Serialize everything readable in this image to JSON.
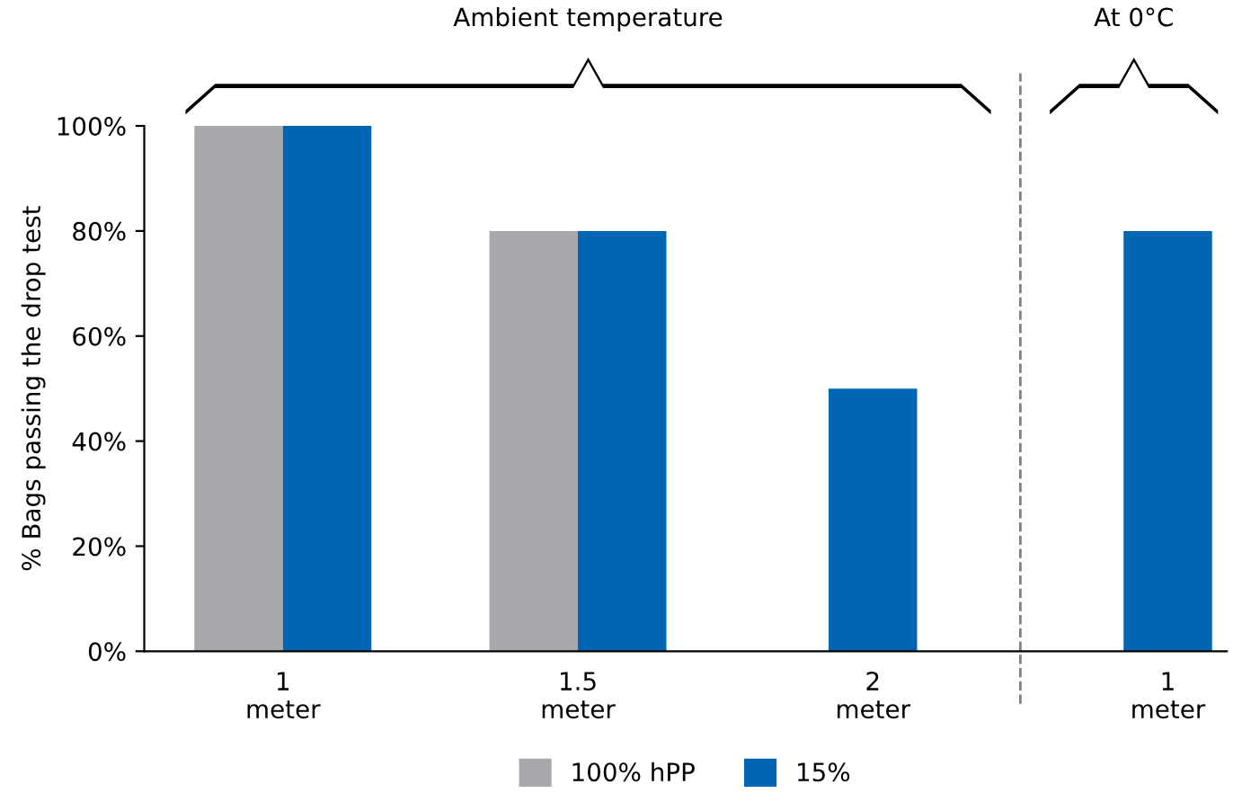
{
  "chart_data": {
    "type": "bar",
    "ylabel": "% Bags passing the drop test",
    "categories": [
      "1\nmeter",
      "1.5\nmeter",
      "2\nmeter",
      "1\nmeter"
    ],
    "series": [
      {
        "name": "100% hPP",
        "color": "#a7a9ac",
        "values": [
          100,
          80,
          null,
          null
        ]
      },
      {
        "name": "15%",
        "color": "#0066b3",
        "values": [
          100,
          80,
          50,
          80
        ]
      }
    ],
    "ylim": [
      0,
      100
    ],
    "yticks": [
      {
        "value": 0,
        "label": "0%"
      },
      {
        "value": 20,
        "label": "20%"
      },
      {
        "value": 40,
        "label": "40%"
      },
      {
        "value": 60,
        "label": "60%"
      },
      {
        "value": 80,
        "label": "80%"
      },
      {
        "value": 100,
        "label": "100%"
      }
    ],
    "annotations": [
      "Ambient temperature",
      "At 0°C"
    ],
    "grid": false,
    "legend": "bottom"
  }
}
